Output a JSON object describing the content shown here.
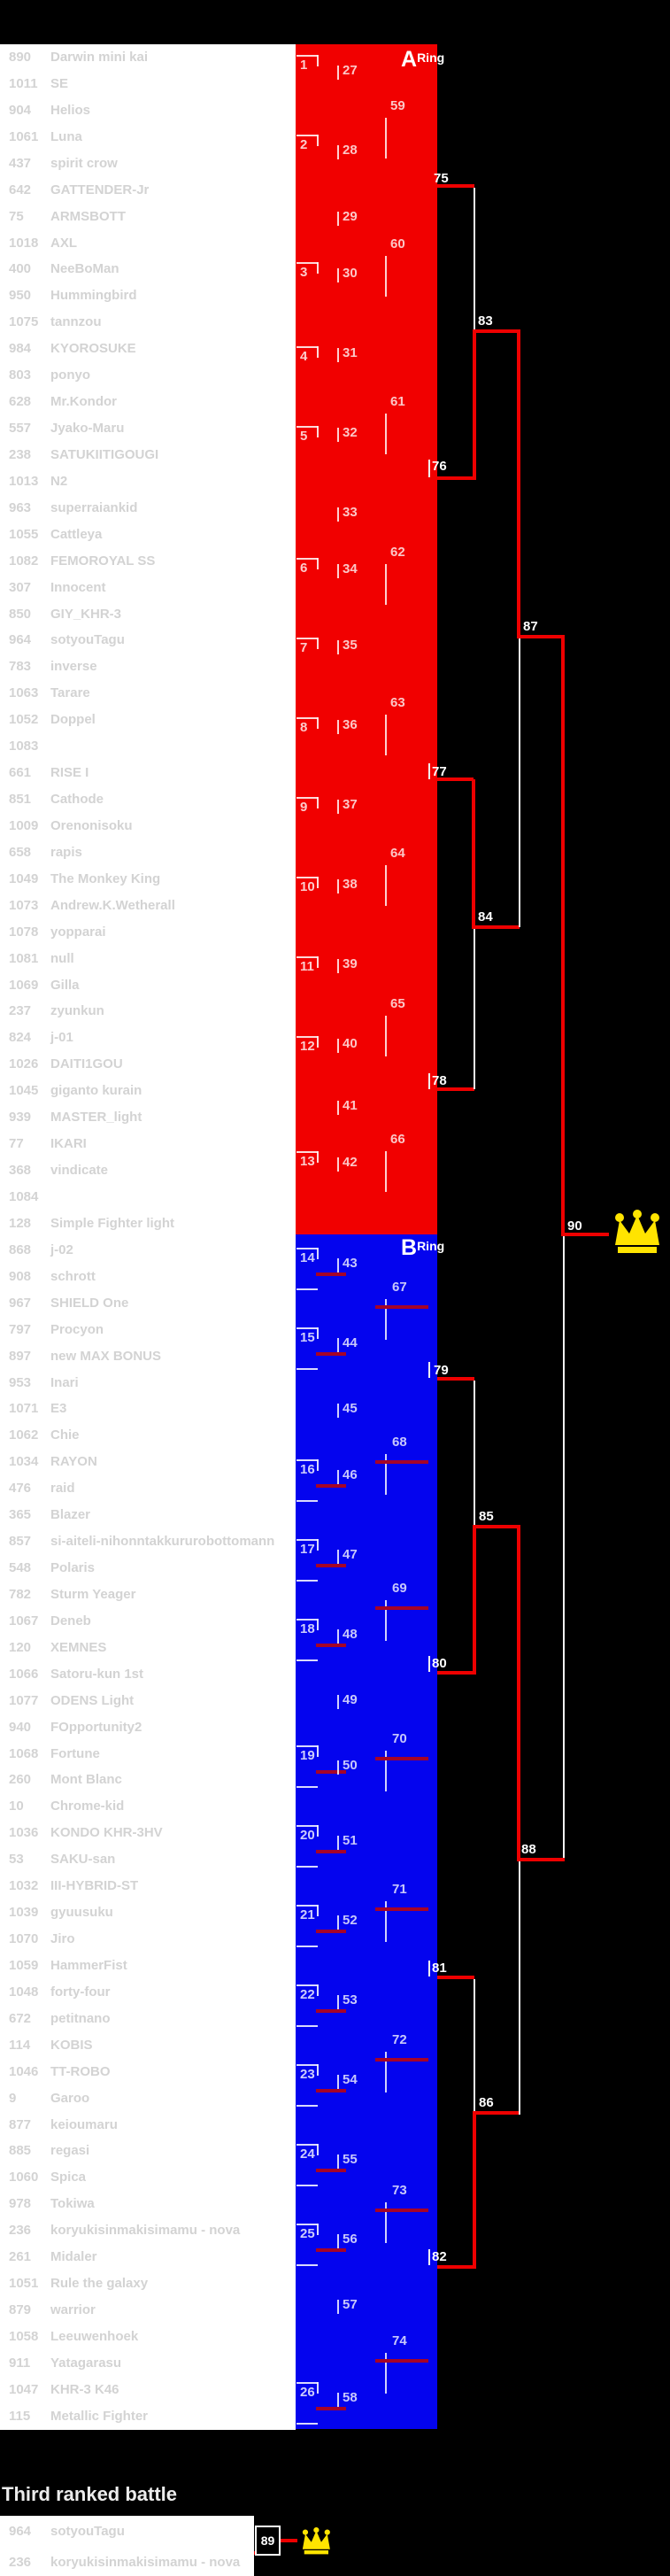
{
  "rings": {
    "a": {
      "letter": "A",
      "word": "Ring",
      "color": "#f10000"
    },
    "b": {
      "letter": "B",
      "word": "Ring",
      "color": "#0404ee"
    }
  },
  "entrants": [
    {
      "n": "890",
      "name": "Darwin mini kai"
    },
    {
      "n": "1011",
      "name": "SE"
    },
    {
      "n": "904",
      "name": "Helios"
    },
    {
      "n": "1061",
      "name": "Luna"
    },
    {
      "n": "437",
      "name": "spirit crow"
    },
    {
      "n": "642",
      "name": "GATTENDER-Jr"
    },
    {
      "n": "75",
      "name": "ARMSBOTT"
    },
    {
      "n": "1018",
      "name": "AXL"
    },
    {
      "n": "400",
      "name": "NeeBoMan"
    },
    {
      "n": "950",
      "name": "Hummingbird"
    },
    {
      "n": "1075",
      "name": "tannzou"
    },
    {
      "n": "984",
      "name": "KYOROSUKE"
    },
    {
      "n": "803",
      "name": "ponyo"
    },
    {
      "n": "628",
      "name": "Mr.Kondor"
    },
    {
      "n": "557",
      "name": "Jyako-Maru"
    },
    {
      "n": "238",
      "name": "SATUKIITIGOUGI"
    },
    {
      "n": "1013",
      "name": "N2"
    },
    {
      "n": "963",
      "name": "superraiankid"
    },
    {
      "n": "1055",
      "name": "Cattleya"
    },
    {
      "n": "1082",
      "name": "FEMOROYAL SS"
    },
    {
      "n": "307",
      "name": "Innocent"
    },
    {
      "n": "850",
      "name": "GIY_KHR-3"
    },
    {
      "n": "964",
      "name": "sotyouTagu"
    },
    {
      "n": "783",
      "name": "inverse"
    },
    {
      "n": "1063",
      "name": "Tarare"
    },
    {
      "n": "1052",
      "name": "Doppel"
    },
    {
      "n": "1083",
      "name": ""
    },
    {
      "n": "661",
      "name": "RISE I"
    },
    {
      "n": "851",
      "name": "Cathode"
    },
    {
      "n": "1009",
      "name": "Orenonisoku"
    },
    {
      "n": "658",
      "name": "rapis"
    },
    {
      "n": "1049",
      "name": "The Monkey King"
    },
    {
      "n": "1073",
      "name": "Andrew.K.Wetherall"
    },
    {
      "n": "1078",
      "name": "yopparai"
    },
    {
      "n": "1081",
      "name": "null"
    },
    {
      "n": "1069",
      "name": "Gilla"
    },
    {
      "n": "237",
      "name": "zyunkun"
    },
    {
      "n": "824",
      "name": "j-01"
    },
    {
      "n": "1026",
      "name": "DAITI1GOU"
    },
    {
      "n": "1045",
      "name": "giganto kurain"
    },
    {
      "n": "939",
      "name": "MASTER_light"
    },
    {
      "n": "77",
      "name": "IKARI"
    },
    {
      "n": "368",
      "name": "vindicate"
    },
    {
      "n": "1084",
      "name": ""
    },
    {
      "n": "128",
      "name": "Simple Fighter light"
    },
    {
      "n": "868",
      "name": "j-02"
    },
    {
      "n": "908",
      "name": "schrott"
    },
    {
      "n": "967",
      "name": "SHIELD One"
    },
    {
      "n": "797",
      "name": "Procyon"
    },
    {
      "n": "897",
      "name": "new MAX BONUS"
    },
    {
      "n": "953",
      "name": "Inari"
    },
    {
      "n": "1071",
      "name": "E3"
    },
    {
      "n": "1062",
      "name": "Chie"
    },
    {
      "n": "1034",
      "name": "RAYON"
    },
    {
      "n": "476",
      "name": "raid"
    },
    {
      "n": "365",
      "name": "Blazer"
    },
    {
      "n": "857",
      "name": "si-aiteli-nihonntakkururobottomann"
    },
    {
      "n": "548",
      "name": "Polaris"
    },
    {
      "n": "782",
      "name": "Sturm Yeager"
    },
    {
      "n": "1067",
      "name": "Deneb"
    },
    {
      "n": "120",
      "name": "XEMNES"
    },
    {
      "n": "1066",
      "name": "Satoru-kun 1st"
    },
    {
      "n": "1077",
      "name": "ODENS  Light"
    },
    {
      "n": "940",
      "name": "FOpportunity2"
    },
    {
      "n": "1068",
      "name": "Fortune"
    },
    {
      "n": "260",
      "name": "Mont Blanc"
    },
    {
      "n": "10",
      "name": "Chrome-kid"
    },
    {
      "n": "1036",
      "name": "KONDO KHR-3HV"
    },
    {
      "n": "53",
      "name": "SAKU-san"
    },
    {
      "n": "1032",
      "name": "III-HYBRID-ST"
    },
    {
      "n": "1039",
      "name": "gyuusuku"
    },
    {
      "n": "1070",
      "name": "Jiro"
    },
    {
      "n": "1059",
      "name": "HammerFist"
    },
    {
      "n": "1048",
      "name": "forty-four"
    },
    {
      "n": "672",
      "name": "petitnano"
    },
    {
      "n": "114",
      "name": "KOBIS"
    },
    {
      "n": "1046",
      "name": "TT-ROBO"
    },
    {
      "n": "9",
      "name": "Garoo"
    },
    {
      "n": "877",
      "name": "keioumaru"
    },
    {
      "n": "885",
      "name": "regasi"
    },
    {
      "n": "1060",
      "name": "Spica"
    },
    {
      "n": "978",
      "name": "Tokiwa"
    },
    {
      "n": "236",
      "name": "koryukisinmakisimamu - nova"
    },
    {
      "n": "261",
      "name": "Midaler"
    },
    {
      "n": "1051",
      "name": "Rule the galaxy"
    },
    {
      "n": "879",
      "name": "warrior"
    },
    {
      "n": "1058",
      "name": "Leeuwenhoek"
    },
    {
      "n": "911",
      "name": "Yatagarasu"
    },
    {
      "n": "1047",
      "name": "KHR-3 K46"
    },
    {
      "n": "115",
      "name": "Metallic Fighter"
    }
  ],
  "bracket": {
    "r1": [
      [
        1,
        62
      ],
      [
        2,
        152
      ],
      [
        3,
        296
      ],
      [
        4,
        391
      ],
      [
        5,
        481
      ],
      [
        6,
        630
      ],
      [
        7,
        720
      ],
      [
        8,
        810
      ],
      [
        9,
        900
      ],
      [
        10,
        990
      ],
      [
        11,
        1080
      ],
      [
        12,
        1170
      ],
      [
        13,
        1300
      ],
      [
        14,
        1409
      ],
      [
        15,
        1499
      ],
      [
        16,
        1648
      ],
      [
        17,
        1738
      ],
      [
        18,
        1828
      ],
      [
        19,
        1971
      ],
      [
        20,
        2061
      ],
      [
        21,
        2151
      ],
      [
        22,
        2241
      ],
      [
        23,
        2331
      ],
      [
        24,
        2421
      ],
      [
        25,
        2511
      ],
      [
        26,
        2690
      ]
    ],
    "r2": [
      [
        27,
        72
      ],
      [
        28,
        162
      ],
      [
        29,
        237
      ],
      [
        30,
        301
      ],
      [
        31,
        391
      ],
      [
        32,
        481
      ],
      [
        33,
        571
      ],
      [
        34,
        635
      ],
      [
        35,
        721
      ],
      [
        36,
        811
      ],
      [
        37,
        901
      ],
      [
        38,
        991
      ],
      [
        39,
        1081
      ],
      [
        40,
        1171
      ],
      [
        41,
        1241
      ],
      [
        42,
        1305
      ],
      [
        43,
        1419
      ],
      [
        44,
        1509
      ],
      [
        45,
        1583
      ],
      [
        46,
        1658
      ],
      [
        47,
        1748
      ],
      [
        48,
        1838
      ],
      [
        49,
        1912
      ],
      [
        50,
        1986
      ],
      [
        51,
        2071
      ],
      [
        52,
        2161
      ],
      [
        53,
        2251
      ],
      [
        54,
        2341
      ],
      [
        55,
        2431
      ],
      [
        56,
        2521
      ],
      [
        57,
        2595
      ],
      [
        58,
        2700
      ]
    ],
    "r3": [
      [
        59,
        112
      ],
      [
        60,
        268
      ],
      [
        61,
        446
      ],
      [
        62,
        616
      ],
      [
        63,
        786
      ],
      [
        64,
        956
      ],
      [
        65,
        1126
      ],
      [
        66,
        1279
      ],
      [
        67,
        1446
      ],
      [
        68,
        1621
      ],
      [
        69,
        1786
      ],
      [
        70,
        1956
      ],
      [
        71,
        2126
      ],
      [
        72,
        2296
      ],
      [
        73,
        2466
      ],
      [
        74,
        2636
      ]
    ],
    "outer_labels": [
      [
        75,
        490,
        194
      ],
      [
        76,
        488,
        519
      ],
      [
        77,
        488,
        864
      ],
      [
        78,
        488,
        1213
      ],
      [
        83,
        540,
        355
      ],
      [
        84,
        540,
        1028
      ],
      [
        87,
        591,
        700
      ],
      [
        90,
        641,
        1377
      ],
      [
        79,
        490,
        1540
      ],
      [
        80,
        488,
        1871
      ],
      [
        81,
        488,
        2215
      ],
      [
        82,
        488,
        2541
      ],
      [
        85,
        541,
        1705
      ],
      [
        86,
        541,
        2367
      ],
      [
        88,
        589,
        2081
      ]
    ],
    "segments": [
      [
        494,
        208,
        42,
        4,
        "r"
      ],
      [
        535,
        212,
        2,
        162,
        "w"
      ],
      [
        484,
        519,
        2,
        20,
        "w"
      ],
      [
        494,
        538,
        42,
        4,
        "r"
      ],
      [
        534,
        374,
        4,
        168,
        "r"
      ],
      [
        534,
        372,
        52,
        4,
        "r"
      ],
      [
        584,
        372,
        4,
        349,
        "r"
      ],
      [
        484,
        862,
        2,
        18,
        "w"
      ],
      [
        494,
        878,
        41,
        4,
        "r"
      ],
      [
        533,
        880,
        4,
        167,
        "r"
      ],
      [
        533,
        1045,
        54,
        4,
        "r"
      ],
      [
        586,
        721,
        2,
        326,
        "w"
      ],
      [
        484,
        1212,
        2,
        18,
        "w"
      ],
      [
        494,
        1228,
        42,
        4,
        "r"
      ],
      [
        535,
        1049,
        2,
        181,
        "w"
      ],
      [
        584,
        717,
        54,
        4,
        "r"
      ],
      [
        634,
        717,
        4,
        679,
        "r"
      ],
      [
        634,
        1392,
        54,
        4,
        "r"
      ],
      [
        636,
        1396,
        2,
        706,
        "w"
      ],
      [
        484,
        1538,
        2,
        18,
        "w"
      ],
      [
        494,
        1555,
        42,
        4,
        "r"
      ],
      [
        535,
        1559,
        2,
        165,
        "w"
      ],
      [
        534,
        1722,
        52,
        4,
        "r"
      ],
      [
        534,
        1722,
        4,
        169,
        "r"
      ],
      [
        484,
        1870,
        2,
        18,
        "w"
      ],
      [
        494,
        1887,
        42,
        4,
        "r"
      ],
      [
        584,
        1722,
        4,
        380,
        "r"
      ],
      [
        584,
        2098,
        54,
        4,
        "r"
      ],
      [
        586,
        2102,
        2,
        286,
        "w"
      ],
      [
        484,
        2214,
        2,
        18,
        "w"
      ],
      [
        494,
        2231,
        42,
        4,
        "r"
      ],
      [
        535,
        2235,
        2,
        151,
        "w"
      ],
      [
        534,
        2384,
        52,
        4,
        "r"
      ],
      [
        534,
        2384,
        4,
        178,
        "r"
      ],
      [
        484,
        2540,
        2,
        18,
        "w"
      ],
      [
        494,
        2558,
        42,
        4,
        "r"
      ],
      [
        287,
        2881,
        25,
        4,
        "r"
      ],
      [
        308,
        2867,
        4,
        18,
        "r"
      ],
      [
        310,
        2867,
        26,
        4,
        "r"
      ]
    ],
    "crowns": [
      [
        692,
        1366,
        1.0
      ],
      [
        340,
        2854,
        0.62
      ]
    ]
  },
  "third_place": {
    "title": "Third ranked battle",
    "match_label": "89",
    "entrants": [
      {
        "n": "964",
        "name": "sotyouTagu"
      },
      {
        "n": "236",
        "name": "koryukisinmakisimamu - nova"
      }
    ]
  },
  "colors": {
    "ring_a": "#f10000",
    "ring_b": "#0404ee",
    "winner_line": "#ee0000",
    "winner_line_dark": "#a50428",
    "loser_line": "#f2f2f2",
    "entrant_text": "#d3d3d3",
    "crown": "#ffe400",
    "background": "#000000",
    "list_bg": "#ffffff"
  }
}
